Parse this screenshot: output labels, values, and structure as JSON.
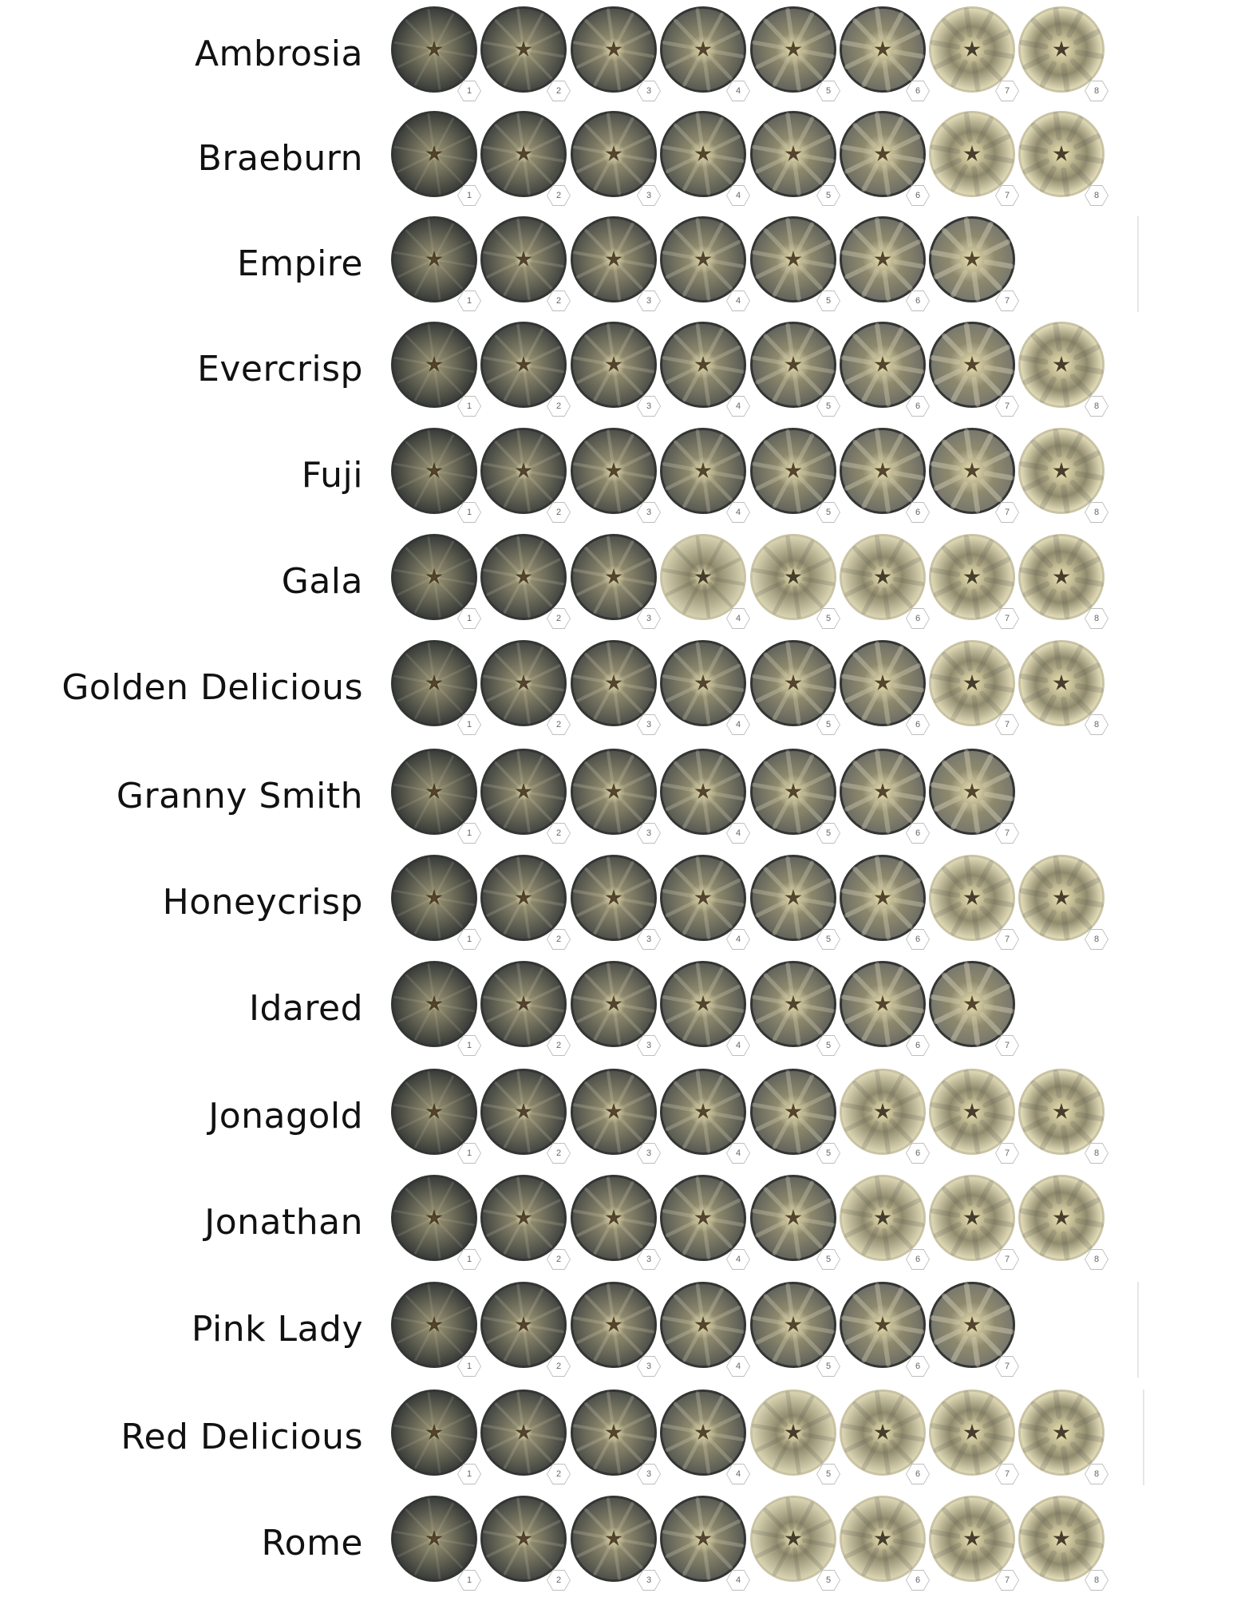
{
  "figure": {
    "varieties": [
      {
        "name": "Ambrosia",
        "stages": [
          "1",
          "2",
          "3",
          "4",
          "5",
          "6",
          "7",
          "8"
        ],
        "light_stage_from": 7
      },
      {
        "name": "Braeburn",
        "stages": [
          "1",
          "2",
          "3",
          "4",
          "5",
          "6",
          "7",
          "8"
        ],
        "light_stage_from": 7
      },
      {
        "name": "Empire",
        "stages": [
          "1",
          "2",
          "3",
          "4",
          "5",
          "6",
          "7"
        ],
        "light_stage_from": 8
      },
      {
        "name": "Evercrisp",
        "stages": [
          "1",
          "2",
          "3",
          "4",
          "5",
          "6",
          "7",
          "8"
        ],
        "light_stage_from": 8
      },
      {
        "name": "Fuji",
        "stages": [
          "1",
          "2",
          "3",
          "4",
          "5",
          "6",
          "7",
          "8"
        ],
        "light_stage_from": 8
      },
      {
        "name": "Gala",
        "stages": [
          "1",
          "2",
          "3",
          "4",
          "5",
          "6",
          "7",
          "8"
        ],
        "light_stage_from": 4
      },
      {
        "name": "Golden Delicious",
        "stages": [
          "1",
          "2",
          "3",
          "4",
          "5",
          "6",
          "7",
          "8"
        ],
        "light_stage_from": 7
      },
      {
        "name": "Granny Smith",
        "stages": [
          "1",
          "2",
          "3",
          "4",
          "5",
          "6",
          "7"
        ],
        "light_stage_from": 8
      },
      {
        "name": "Honeycrisp",
        "stages": [
          "1",
          "2",
          "3",
          "4",
          "5",
          "6",
          "7",
          "8"
        ],
        "light_stage_from": 7
      },
      {
        "name": "Idared",
        "stages": [
          "1",
          "2",
          "3",
          "4",
          "5",
          "6",
          "7"
        ],
        "light_stage_from": 8
      },
      {
        "name": "Jonagold",
        "stages": [
          "1",
          "2",
          "3",
          "4",
          "5",
          "6",
          "7",
          "8"
        ],
        "light_stage_from": 6
      },
      {
        "name": "Jonathan",
        "stages": [
          "1",
          "2",
          "3",
          "4",
          "5",
          "6",
          "7",
          "8"
        ],
        "light_stage_from": 6
      },
      {
        "name": "Pink Lady",
        "stages": [
          "1",
          "2",
          "3",
          "4",
          "5",
          "6",
          "7"
        ],
        "light_stage_from": 8
      },
      {
        "name": "Red Delicious",
        "stages": [
          "1",
          "2",
          "3",
          "4",
          "5",
          "6",
          "7",
          "8"
        ],
        "light_stage_from": 5
      },
      {
        "name": "Rome",
        "stages": [
          "1",
          "2",
          "3",
          "4",
          "5",
          "6",
          "7",
          "8"
        ],
        "light_stage_from": 5
      }
    ]
  },
  "colors": {
    "dark_flesh": "#3a3d3a",
    "mid_flesh": "#8f8e80",
    "light_flesh": "#e2dcb8",
    "core_light": "#efe6b6",
    "core_seed": "#3a2a18",
    "badge_border": "#c9c9c9",
    "badge_text": "#666666"
  }
}
